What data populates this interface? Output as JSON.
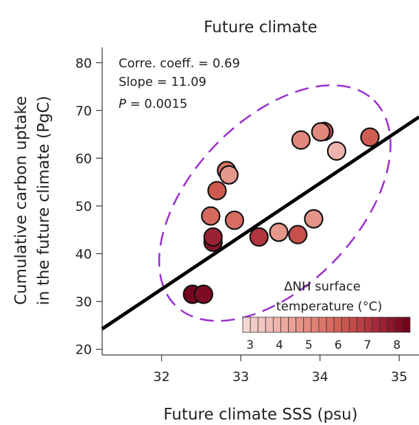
{
  "chart_data": {
    "type": "scatter",
    "title": "Future climate",
    "xlabel": "Future climate SSS (psu)",
    "ylabel_lines": [
      "Cumulative carbon uptake",
      "in the future climate (PgC)"
    ],
    "xlim": [
      31.25,
      35.25
    ],
    "ylim": [
      18.8,
      83.2
    ],
    "xticks": [
      32,
      33,
      34,
      35
    ],
    "yticks": [
      20,
      30,
      40,
      50,
      60,
      70,
      80
    ],
    "grid": false,
    "stats": {
      "corr_label": "Corre. coeff. = 0.69",
      "slope_label": "Slope = 11.09",
      "p_italic": "P",
      "p_value": " = 0.0015"
    },
    "regression_line": {
      "slope": 11.09,
      "intercept": -322.3,
      "color": "#000000"
    },
    "confidence_ellipse": {
      "center": [
        33.43,
        50.6
      ],
      "color": "#9b30d0",
      "style": "dashed"
    },
    "colorbar": {
      "title_lines": [
        "ΔNH surface",
        "temperature (°C)"
      ],
      "min": 2.75,
      "max": 8.45,
      "ticks": [
        3,
        4,
        5,
        6,
        7,
        8
      ],
      "colors": [
        "#f6dcd8",
        "#eeb4ac",
        "#e3877b",
        "#cf5a4f",
        "#a5283a",
        "#6b0018"
      ]
    },
    "points": [
      {
        "x": 32.39,
        "y": 31.5,
        "temp": 8.3
      },
      {
        "x": 32.53,
        "y": 31.5,
        "temp": 8.1
      },
      {
        "x": 32.65,
        "y": 42.4,
        "temp": 7.9
      },
      {
        "x": 32.65,
        "y": 43.5,
        "temp": 7.5
      },
      {
        "x": 32.62,
        "y": 47.9,
        "temp": 5.8
      },
      {
        "x": 32.92,
        "y": 47.0,
        "temp": 5.7
      },
      {
        "x": 32.7,
        "y": 53.2,
        "temp": 6.2
      },
      {
        "x": 32.82,
        "y": 57.4,
        "temp": 5.6
      },
      {
        "x": 32.85,
        "y": 56.5,
        "temp": 4.6
      },
      {
        "x": 33.23,
        "y": 43.5,
        "temp": 7.0
      },
      {
        "x": 33.48,
        "y": 44.5,
        "temp": 4.6
      },
      {
        "x": 33.72,
        "y": 44.0,
        "temp": 6.4
      },
      {
        "x": 33.92,
        "y": 47.3,
        "temp": 4.7
      },
      {
        "x": 33.76,
        "y": 63.8,
        "temp": 5.0
      },
      {
        "x": 34.05,
        "y": 65.6,
        "temp": 6.4
      },
      {
        "x": 34.01,
        "y": 65.5,
        "temp": 5.0
      },
      {
        "x": 34.21,
        "y": 61.5,
        "temp": 3.9
      },
      {
        "x": 34.63,
        "y": 64.4,
        "temp": 6.1
      }
    ]
  }
}
